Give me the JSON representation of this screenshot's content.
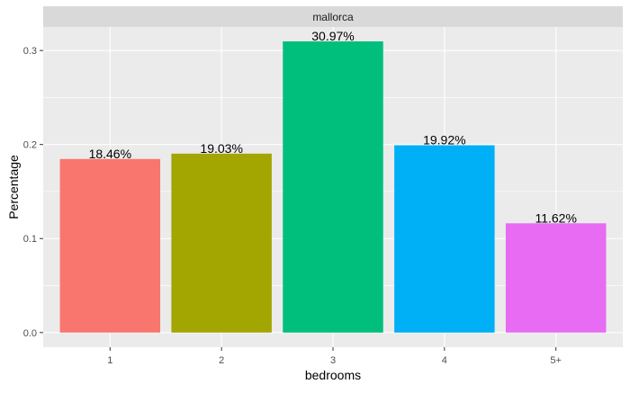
{
  "chart_data": {
    "type": "bar",
    "facet_label": "mallorca",
    "categories": [
      "1",
      "2",
      "3",
      "4",
      "5+"
    ],
    "values": [
      0.1846,
      0.1903,
      0.3097,
      0.1992,
      0.1162
    ],
    "data_labels": [
      "18.46%",
      "19.03%",
      "30.97%",
      "19.92%",
      "11.62%"
    ],
    "colors": [
      "#F8766D",
      "#A3A500",
      "#00BF7D",
      "#00B0F6",
      "#E76BF3"
    ],
    "xlabel": "bedrooms",
    "ylabel": "Percentage",
    "ylim": [
      -0.0155,
      0.325
    ],
    "yticks": [
      0.0,
      0.1,
      0.2,
      0.3
    ],
    "ytick_labels": [
      "0.0",
      "0.1",
      "0.2",
      "0.3"
    ],
    "grid": true,
    "legend": "none",
    "panel_background": "#EBEBEB",
    "strip_background": "#D9D9D9"
  }
}
